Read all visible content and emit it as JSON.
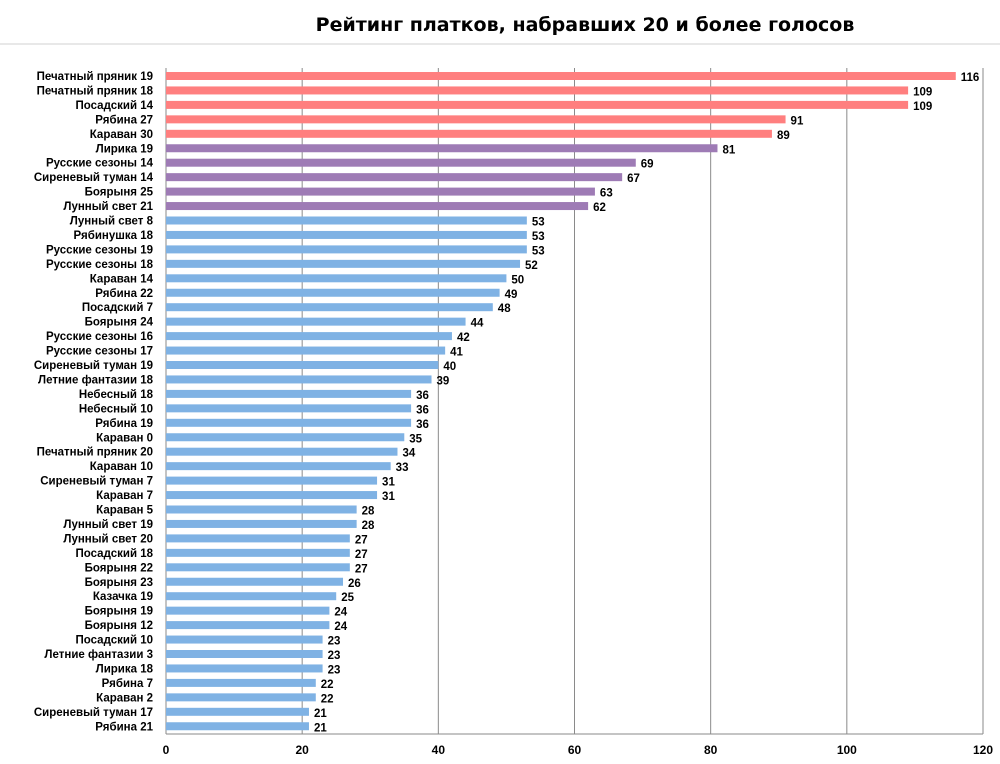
{
  "chart_data": {
    "type": "bar",
    "orientation": "horizontal",
    "title": "Рейтинг  платков, набравших 20 и более голосов",
    "xlabel": "",
    "ylabel": "",
    "xlim": [
      0,
      120
    ],
    "ticks": [
      "0",
      "20",
      "40",
      "60",
      "80",
      "100",
      "120"
    ],
    "grid": "vertical",
    "legend": "none",
    "colors": {
      "top": "#ff7f7f",
      "mid": "#9e7bb5",
      "rest": "#7fb2e4"
    },
    "categories": [
      "Печатный пряник 19",
      "Печатный пряник 18",
      "Посадский 14",
      "Рябина 27",
      "Караван 30",
      "Лирика 19",
      "Русские сезоны 14",
      "Сиреневый туман 14",
      "Боярыня 25",
      "Лунный свет 21",
      "Лунный свет 8",
      "Рябинушка 18",
      "Русские сезоны 19",
      "Русские сезоны 18",
      "Караван 14",
      "Рябина 22",
      "Посадский 7",
      "Боярыня 24",
      "Русские сезоны 16",
      "Русские сезоны 17",
      "Сиреневый туман 19",
      "Летние фантазии 18",
      "Небесный 18",
      "Небесный 10",
      "Рябина 19",
      "Караван 0",
      "Печатный пряник 20",
      "Караван 10",
      "Сиреневый туман 7",
      "Караван 7",
      "Караван 5",
      "Лунный свет 19",
      "Лунный свет 20",
      "Посадский 18",
      "Боярыня 22",
      "Боярыня 23",
      "Казачка 19",
      "Боярыня 19",
      "Боярыня 12",
      "Посадский 10",
      "Летние фантазии 3",
      "Лирика 18",
      "Рябина 7",
      "Караван 2",
      "Сиреневый туман 17",
      "Рябина 21"
    ],
    "values": [
      116,
      109,
      109,
      91,
      89,
      81,
      69,
      67,
      63,
      62,
      53,
      53,
      53,
      52,
      50,
      49,
      48,
      44,
      42,
      41,
      40,
      39,
      36,
      36,
      36,
      35,
      34,
      33,
      31,
      31,
      28,
      28,
      27,
      27,
      27,
      26,
      25,
      24,
      24,
      23,
      23,
      23,
      22,
      22,
      21,
      21
    ],
    "color_groups": [
      "top",
      "top",
      "top",
      "top",
      "top",
      "mid",
      "mid",
      "mid",
      "mid",
      "mid",
      "rest",
      "rest",
      "rest",
      "rest",
      "rest",
      "rest",
      "rest",
      "rest",
      "rest",
      "rest",
      "rest",
      "rest",
      "rest",
      "rest",
      "rest",
      "rest",
      "rest",
      "rest",
      "rest",
      "rest",
      "rest",
      "rest",
      "rest",
      "rest",
      "rest",
      "rest",
      "rest",
      "rest",
      "rest",
      "rest",
      "rest",
      "rest",
      "rest",
      "rest",
      "rest",
      "rest"
    ]
  }
}
